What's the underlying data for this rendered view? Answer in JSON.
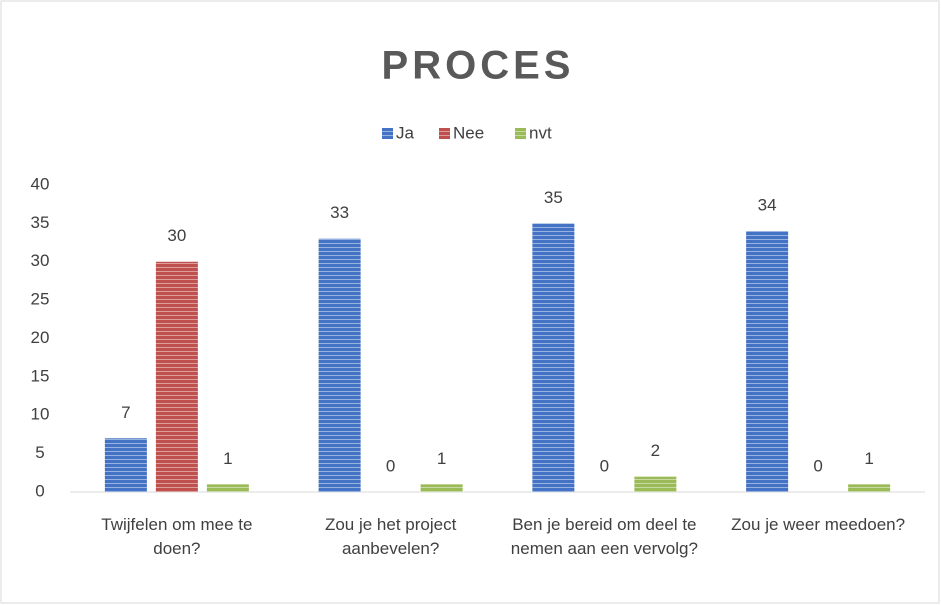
{
  "chart_data": {
    "type": "bar",
    "title": "PROCES",
    "categories": [
      "Twijfelen om mee te doen?",
      "Zou je het project aanbevelen?",
      "Ben je bereid om deel te nemen aan een vervolg?",
      "Zou je weer meedoen?"
    ],
    "series": [
      {
        "name": "Ja",
        "color": "#4472c4",
        "values": [
          7,
          33,
          35,
          34
        ]
      },
      {
        "name": "Nee",
        "color": "#c0504d",
        "values": [
          30,
          0,
          0,
          0
        ]
      },
      {
        "name": "nvt",
        "color": "#9bbb59",
        "values": [
          1,
          1,
          2,
          1
        ]
      }
    ],
    "ylim": [
      0,
      40
    ],
    "yticks": [
      0,
      5,
      10,
      15,
      20,
      25,
      30,
      35,
      40
    ],
    "grid": false,
    "legend": "top"
  }
}
